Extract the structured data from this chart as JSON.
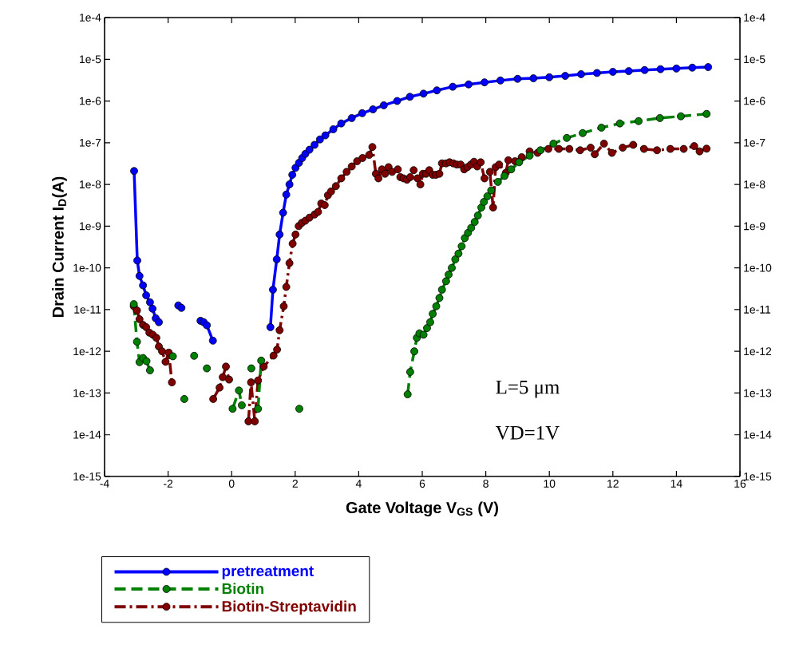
{
  "chart_data": {
    "type": "line",
    "xlabel": "Gate Voltage V$_{GS}$ (V)",
    "ylabel": "Drain Current I$_{D}$(A)",
    "log": "y",
    "marker": "circle",
    "legend": "bottom left",
    "xlim": [
      -4,
      16
    ],
    "xticks": [
      -4,
      -2,
      0,
      2,
      4,
      6,
      8,
      10,
      12,
      14,
      16
    ],
    "ylim": [
      1e-15,
      0.0001
    ],
    "yticks": [
      {
        "value": 1e-15,
        "label": "1e-15"
      },
      {
        "value": 1e-14,
        "label": "1e-14"
      },
      {
        "value": 1e-13,
        "label": "1e-13"
      },
      {
        "value": 1e-12,
        "label": "1e-12"
      },
      {
        "value": 1e-11,
        "label": "1e-11"
      },
      {
        "value": 1e-10,
        "label": "1e-10"
      },
      {
        "value": 1e-09,
        "label": "1e-9"
      },
      {
        "value": 1e-08,
        "label": "1e-8"
      },
      {
        "value": 1e-07,
        "label": "1e-7"
      },
      {
        "value": 1e-06,
        "label": "1e-6"
      },
      {
        "value": 1e-05,
        "label": "1e-5"
      },
      {
        "value": 0.0001,
        "label": "1e-4"
      }
    ],
    "annotations": [
      "L=5 μm",
      "VD=1V"
    ],
    "series": [
      {
        "name": "pretreatment",
        "color": "#0000ff",
        "line_style": "solid",
        "x": [
          -3.07,
          -2.97,
          -2.9,
          -2.79,
          -2.69,
          -2.57,
          -2.49,
          -2.39,
          -2.29,
          -1.98,
          -1.68,
          -1.63,
          -1.58,
          -1.3,
          -0.98,
          -0.88,
          -0.78,
          -0.59,
          0.3,
          1.22,
          1.3,
          1.42,
          1.51,
          1.62,
          1.72,
          1.82,
          1.91,
          2.01,
          2.12,
          2.22,
          2.32,
          2.45,
          2.61,
          2.78,
          2.95,
          3.2,
          3.45,
          3.78,
          4.11,
          4.45,
          4.79,
          5.21,
          5.61,
          6.04,
          6.46,
          6.96,
          7.46,
          7.96,
          8.46,
          9,
          9.5,
          10,
          10.5,
          11,
          11.5,
          12,
          12.5,
          13,
          13.5,
          14,
          14.5,
          15
        ],
        "values": [
          2.1e-08,
          1.5e-10,
          6.4e-11,
          3.8e-11,
          2.2e-11,
          1.5e-11,
          1.05e-11,
          6.2e-12,
          5e-12,
          null,
          1.26e-11,
          null,
          1.1e-11,
          null,
          5.4e-12,
          5e-12,
          4.2e-12,
          1.8e-12,
          null,
          3.8e-12,
          3e-11,
          1.6e-10,
          6.3e-10,
          2.1e-09,
          5.7e-09,
          1e-08,
          1.7e-08,
          2.5e-08,
          3.3e-08,
          4.3e-08,
          5.4e-08,
          6.8e-08,
          8.9e-08,
          1.2e-07,
          1.5e-07,
          2.1e-07,
          2.9e-07,
          3.9e-07,
          5.1e-07,
          6.3e-07,
          7.9e-07,
          1e-06,
          1.26e-06,
          1.5e-06,
          1.8e-06,
          2.2e-06,
          2.5e-06,
          2.8e-06,
          3.1e-06,
          3.4e-06,
          3.5e-06,
          3.7e-06,
          4e-06,
          4.4e-06,
          4.7e-06,
          5e-06,
          5.2e-06,
          5.5e-06,
          5.8e-06,
          6e-06,
          6.3e-06,
          6.5e-06
        ]
      },
      {
        "name": "Biotin",
        "color": "#008000",
        "line_style": "dashed",
        "x": [
          -3.08,
          -2.98,
          -2.9,
          -2.79,
          -2.68,
          -2.57,
          -2.2,
          -1.85,
          -1.7,
          -1.49,
          -1.3,
          -1.18,
          -1.0,
          -0.78,
          -0.4,
          0.03,
          0.23,
          0.32,
          0.5,
          0.62,
          0.7,
          0.83,
          0.93,
          1.5,
          2.13,
          4.0,
          5.54,
          5.62,
          5.75,
          5.83,
          5.91,
          6.04,
          6.15,
          6.25,
          6.33,
          6.44,
          6.54,
          6.62,
          6.75,
          6.83,
          6.93,
          7.04,
          7.14,
          7.24,
          7.34,
          7.44,
          7.54,
          7.65,
          7.75,
          7.86,
          7.94,
          8.05,
          8.17,
          8.38,
          8.59,
          8.8,
          9.05,
          9.38,
          9.72,
          10.13,
          10.55,
          11.05,
          11.64,
          12.22,
          12.81,
          13.48,
          14.14,
          14.95
        ],
        "values": [
          1.35e-11,
          1.7e-12,
          5.5e-13,
          6.9e-13,
          5.8e-13,
          3.5e-13,
          null,
          7.6e-13,
          null,
          7.2e-14,
          null,
          7.8e-13,
          null,
          3.9e-13,
          null,
          4.2e-14,
          1.15e-13,
          5.1e-14,
          null,
          3.9e-13,
          null,
          4.2e-14,
          6e-13,
          null,
          4.2e-14,
          null,
          9.3e-14,
          3.2e-13,
          1e-12,
          2.1e-12,
          2.7e-12,
          2.5e-12,
          3.6e-12,
          5e-12,
          7.9e-12,
          1.2e-11,
          1.9e-11,
          3e-11,
          4.8e-11,
          6.9e-11,
          1e-10,
          1.6e-10,
          2.2e-10,
          3.3e-10,
          5.2e-10,
          6.9e-10,
          9.1e-10,
          1.26e-09,
          1.8e-09,
          2.8e-09,
          3.8e-09,
          5.2e-09,
          7.2e-09,
          1.15e-08,
          1.6e-08,
          2.3e-08,
          3.4e-08,
          4.9e-08,
          6.6e-08,
          9.5e-08,
          1.3e-07,
          1.7e-07,
          2.3e-07,
          2.9e-07,
          3.3e-07,
          3.9e-07,
          4.3e-07,
          4.9e-07
        ]
      },
      {
        "name": "Biotin-Streptavidin",
        "color": "#800000",
        "line_style": "dashdot",
        "x": [
          -3.08,
          -2.98,
          -2.9,
          -2.79,
          -2.69,
          -2.59,
          -2.48,
          -2.37,
          -2.29,
          -2.19,
          -2.08,
          -1.98,
          -1.88,
          -1.2,
          -0.58,
          -0.38,
          -0.28,
          -0.18,
          -0.08,
          0.2,
          0.53,
          0.61,
          0.73,
          0.83,
          1.01,
          1.32,
          1.43,
          1.51,
          1.64,
          1.72,
          1.82,
          1.92,
          2.01,
          2.11,
          2.21,
          2.32,
          2.45,
          2.61,
          2.72,
          2.82,
          2.93,
          3.03,
          3.13,
          3.28,
          3.45,
          3.62,
          3.78,
          3.95,
          4.12,
          4.33,
          4.43,
          4.54,
          4.62,
          4.73,
          4.83,
          4.94,
          5.05,
          5.23,
          5.31,
          5.41,
          5.52,
          5.62,
          5.73,
          5.85,
          5.94,
          6.02,
          6.12,
          6.22,
          6.33,
          6.43,
          6.54,
          6.62,
          6.75,
          6.86,
          6.98,
          7.09,
          7.21,
          7.32,
          7.42,
          7.53,
          7.63,
          7.73,
          7.84,
          7.96,
          8.13,
          8.23,
          8.31,
          8.42,
          8.63,
          8.71,
          8.92,
          9.13,
          9.38,
          9.63,
          9.97,
          10.3,
          10.63,
          10.97,
          11.3,
          11.43,
          11.72,
          11.97,
          12.31,
          12.64,
          12.98,
          13.39,
          13.81,
          14.23,
          14.56,
          14.73,
          14.95
        ],
        "values": [
          1.2e-11,
          9.5e-12,
          5.9e-12,
          4.3e-12,
          3.8e-12,
          2.8e-12,
          2.5e-12,
          2.1e-12,
          1.3e-12,
          1e-12,
          5.6e-13,
          9.3e-13,
          1.8e-13,
          null,
          7.2e-14,
          1.35e-13,
          2.4e-13,
          4.3e-13,
          2.1e-13,
          null,
          2.1e-14,
          1.8e-13,
          2.1e-14,
          2e-13,
          4.3e-13,
          7.9e-13,
          1.1e-12,
          3.2e-12,
          1.2e-11,
          3.5e-11,
          1.3e-10,
          3.8e-10,
          6.3e-10,
          1e-09,
          1.2e-09,
          1.35e-09,
          1.6e-09,
          1.9e-09,
          2.2e-09,
          3.5e-09,
          3.2e-09,
          5.5e-09,
          6.8e-09,
          9.1e-09,
          1.4e-08,
          2e-08,
          2.7e-08,
          3.6e-08,
          4.3e-08,
          5.1e-08,
          7.9e-08,
          1.8e-08,
          1.4e-08,
          2.3e-08,
          1.8e-08,
          2.6e-08,
          2e-08,
          2.3e-08,
          1.5e-08,
          1.4e-08,
          1.3e-08,
          1.5e-08,
          2.2e-08,
          1.4e-08,
          1e-08,
          1.8e-08,
          1.8e-08,
          2.2e-08,
          1.7e-08,
          1.7e-08,
          1.8e-08,
          3.2e-08,
          3.2e-08,
          3.4e-08,
          3.2e-08,
          3e-08,
          3e-08,
          2.3e-08,
          2.6e-08,
          3e-08,
          3.5e-08,
          2.7e-08,
          3.4e-08,
          1.4e-08,
          2e-08,
          2.8e-09,
          2.6e-08,
          3e-08,
          1.9e-08,
          3.8e-08,
          3.6e-08,
          4.5e-08,
          6.2e-08,
          5.7e-08,
          7.1e-08,
          7.1e-08,
          7.1e-08,
          6.6e-08,
          7.6e-08,
          5.3e-08,
          9.5e-08,
          5.7e-08,
          7.6e-08,
          8.9e-08,
          7.1e-08,
          6.6e-08,
          7.1e-08,
          7.1e-08,
          8.3e-08,
          6.2e-08,
          7.2e-08
        ]
      }
    ]
  }
}
